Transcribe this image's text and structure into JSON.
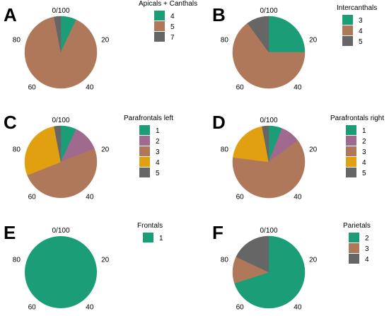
{
  "chart_data": [
    {
      "panel": "A",
      "type": "pie",
      "legend_title": "Apicals + Canthals",
      "tick_labels": [
        "0/100",
        "20",
        "40",
        "60",
        "80"
      ],
      "slices": [
        {
          "label": "4",
          "value": 7,
          "color": "#1b9e77"
        },
        {
          "label": "5",
          "value": 90,
          "color": "#b0785a"
        },
        {
          "label": "7",
          "value": 3,
          "color": "#666666"
        }
      ]
    },
    {
      "panel": "B",
      "type": "pie",
      "legend_title": "Intercanthals",
      "tick_labels": [
        "0/100",
        "20",
        "40",
        "60",
        "80"
      ],
      "slices": [
        {
          "label": "3",
          "value": 25,
          "color": "#1b9e77"
        },
        {
          "label": "4",
          "value": 65,
          "color": "#b0785a"
        },
        {
          "label": "5",
          "value": 10,
          "color": "#666666"
        }
      ]
    },
    {
      "panel": "C",
      "type": "pie",
      "legend_title": "Parafrontals left",
      "tick_labels": [
        "0/100",
        "20",
        "40",
        "60",
        "80"
      ],
      "slices": [
        {
          "label": "1",
          "value": 7,
          "color": "#1b9e77"
        },
        {
          "label": "2",
          "value": 12,
          "color": "#a0698e"
        },
        {
          "label": "3",
          "value": 50,
          "color": "#b0785a"
        },
        {
          "label": "4",
          "value": 28,
          "color": "#e0a010"
        },
        {
          "label": "5",
          "value": 3,
          "color": "#666666"
        }
      ]
    },
    {
      "panel": "D",
      "type": "pie",
      "legend_title": "Parafrontals right",
      "tick_labels": [
        "0/100",
        "20",
        "40",
        "60",
        "80"
      ],
      "slices": [
        {
          "label": "1",
          "value": 6,
          "color": "#1b9e77"
        },
        {
          "label": "2",
          "value": 9,
          "color": "#a0698e"
        },
        {
          "label": "3",
          "value": 62,
          "color": "#b0785a"
        },
        {
          "label": "4",
          "value": 20,
          "color": "#e0a010"
        },
        {
          "label": "5",
          "value": 3,
          "color": "#666666"
        }
      ]
    },
    {
      "panel": "E",
      "type": "pie",
      "legend_title": "Frontals",
      "tick_labels": [
        "0/100",
        "20",
        "40",
        "60",
        "80"
      ],
      "slices": [
        {
          "label": "1",
          "value": 100,
          "color": "#1b9e77"
        }
      ]
    },
    {
      "panel": "F",
      "type": "pie",
      "legend_title": "Parietals",
      "tick_labels": [
        "0/100",
        "20",
        "40",
        "60",
        "80"
      ],
      "slices": [
        {
          "label": "2",
          "value": 70,
          "color": "#1b9e77"
        },
        {
          "label": "3",
          "value": 12,
          "color": "#b0785a"
        },
        {
          "label": "4",
          "value": 18,
          "color": "#666666"
        }
      ]
    }
  ]
}
